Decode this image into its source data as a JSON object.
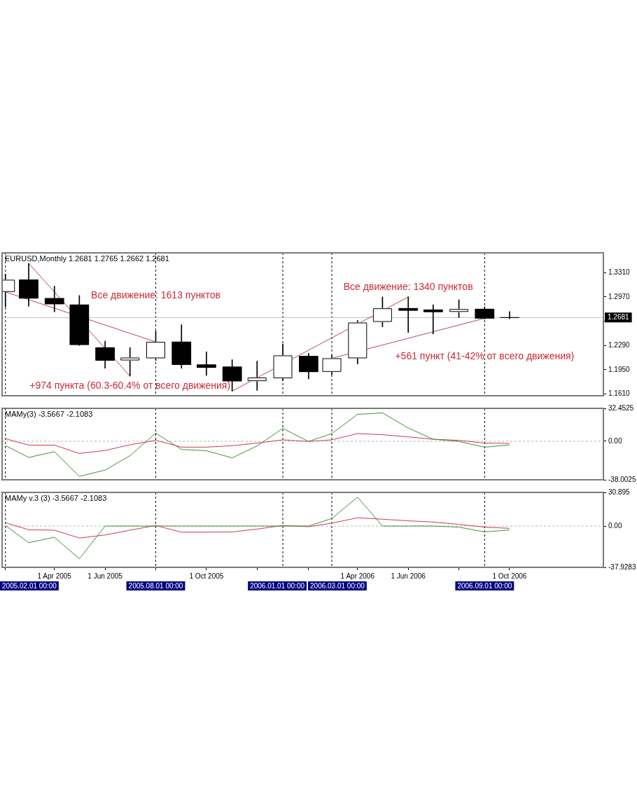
{
  "chart_data": [
    {
      "type": "candlestick",
      "title": "EURUSD,Monthly 1.2681 1.2765 1.2662 1.2681",
      "x": [
        "2005-02",
        "2005-03",
        "2005-04",
        "2005-05",
        "2005-06",
        "2005-07",
        "2005-08",
        "2005-09",
        "2005-10",
        "2005-11",
        "2005-12",
        "2006-01",
        "2006-02",
        "2006-03",
        "2006-04",
        "2006-05",
        "2006-06",
        "2006-07",
        "2006-08",
        "2006-09",
        "2006-10"
      ],
      "ohlc": [
        [
          1.304,
          1.329,
          1.283,
          1.321
        ],
        [
          1.321,
          1.344,
          1.284,
          1.295
        ],
        [
          1.295,
          1.312,
          1.276,
          1.287
        ],
        [
          1.286,
          1.299,
          1.229,
          1.23
        ],
        [
          1.226,
          1.235,
          1.197,
          1.208
        ],
        [
          1.208,
          1.226,
          1.186,
          1.212
        ],
        [
          1.211,
          1.249,
          1.208,
          1.234
        ],
        [
          1.234,
          1.258,
          1.197,
          1.202
        ],
        [
          1.202,
          1.22,
          1.187,
          1.198
        ],
        [
          1.199,
          1.209,
          1.165,
          1.179
        ],
        [
          1.179,
          1.207,
          1.166,
          1.184
        ],
        [
          1.183,
          1.231,
          1.18,
          1.215
        ],
        [
          1.214,
          1.218,
          1.182,
          1.192
        ],
        [
          1.192,
          1.215,
          1.188,
          1.211
        ],
        [
          1.211,
          1.264,
          1.203,
          1.261
        ],
        [
          1.262,
          1.297,
          1.255,
          1.281
        ],
        [
          1.281,
          1.297,
          1.247,
          1.278
        ],
        [
          1.279,
          1.286,
          1.245,
          1.276
        ],
        [
          1.276,
          1.293,
          1.268,
          1.28
        ],
        [
          1.28,
          1.283,
          1.266,
          1.267
        ],
        [
          1.2681,
          1.2765,
          1.2662,
          1.2681
        ]
      ],
      "color": "#000000",
      "colors": [
        "#ffffff",
        "#000000",
        "#000000",
        "#000000",
        "#000000",
        "#ffffff",
        "#ffffff",
        "#000000",
        "#000000",
        "#000000",
        "#ffffff",
        "#ffffff",
        "#000000",
        "#ffffff",
        "#ffffff",
        "#ffffff",
        "#000000",
        "#000000",
        "#ffffff",
        "#000000",
        "#000000"
      ],
      "series": [
        {
          "type": "line",
          "color": "#b5485a",
          "x": [
            "2005-03",
            "2005-07"
          ],
          "values": [
            1.344,
            1.186
          ]
        },
        {
          "type": "line",
          "color": "#b5485a",
          "x": [
            "2005-02",
            "2005-08"
          ],
          "values": [
            1.304,
            1.234
          ]
        },
        {
          "type": "line",
          "color": "#b5485a",
          "x": [
            "2005-11",
            "2006-06"
          ],
          "values": [
            1.165,
            1.297
          ]
        },
        {
          "type": "line",
          "color": "#b5485a",
          "x": [
            "2006-03",
            "2006-09"
          ],
          "values": [
            1.211,
            1.267
          ]
        }
      ],
      "xlim": [
        "2005-01-28",
        "2007-01-22"
      ],
      "ylim": [
        1.1585,
        1.3587
      ],
      "yticks": [
        {
          "value": 1.331,
          "label": "1.3310"
        },
        {
          "value": 1.297,
          "label": "1.2970"
        },
        {
          "value": 1.263,
          "label": null
        },
        {
          "value": 1.229,
          "label": "1.2290"
        },
        {
          "value": 1.195,
          "label": "1.1950"
        },
        {
          "value": 1.161,
          "label": "1.1610"
        }
      ],
      "ref_lines": [
        {
          "axis": "x",
          "value": "2005-02",
          "color": "#000000",
          "line_style": "dashed"
        },
        {
          "axis": "x",
          "value": "2005-08",
          "color": "#000000",
          "line_style": "dashed"
        },
        {
          "axis": "x",
          "value": "2006-01",
          "color": "#000000",
          "line_style": "dashed"
        },
        {
          "axis": "x",
          "value": "2006-03",
          "color": "#000000",
          "line_style": "dashed"
        },
        {
          "axis": "x",
          "value": "2006-09",
          "color": "#000000",
          "line_style": "dashed"
        },
        {
          "axis": "y",
          "value": 1.2681,
          "label": "1.2681",
          "color": "#c0c0c0",
          "line_style": "solid"
        }
      ],
      "annotations": [
        "Все движение: 1613 пунктов",
        "+974 пункта (60.3-60.4% от всего движения)",
        "Все движение: 1340 пунктов",
        "+561 пункт (41-42% от всего движения)"
      ],
      "tick_labels": "y"
    },
    {
      "type": "line",
      "title": "MAMy(3) -3.5667 -2.1083",
      "x": [
        "2005-02",
        "2005-03",
        "2005-04",
        "2005-05",
        "2005-06",
        "2005-07",
        "2005-08",
        "2005-09",
        "2005-10",
        "2005-11",
        "2005-12",
        "2006-01",
        "2006-02",
        "2006-03",
        "2006-04",
        "2006-05",
        "2006-06",
        "2006-07",
        "2006-08",
        "2006-09",
        "2006-10"
      ],
      "series": [
        {
          "color": "#3f8f3f",
          "values": [
            -4.2,
            -16.0,
            -10.2,
            -34.6,
            -28.4,
            -14.2,
            8.0,
            -8.0,
            -9.3,
            -16.4,
            -4.6,
            12.7,
            -0.2,
            7.6,
            26.5,
            28.0,
            13.1,
            2.0,
            -0.2,
            -5.8,
            -3.6
          ]
        },
        {
          "color": "#d03a4c",
          "values": [
            2.5,
            -3.8,
            -3.8,
            -12.0,
            -9.1,
            -3.5,
            0.9,
            -5.8,
            -5.8,
            -4.4,
            -1.8,
            1.4,
            -0.2,
            1.4,
            7.6,
            6.5,
            4.3,
            2.0,
            0.9,
            -1.8,
            -2.1
          ]
        }
      ],
      "xlim": [
        "2005-01-28",
        "2007-01-22"
      ],
      "ylim": [
        -38.0025,
        32.4525
      ],
      "yticks": [
        32.4525,
        {
          "value": 0,
          "label": "0.00"
        },
        -38.0025
      ],
      "ref_lines": [
        {
          "axis": "y",
          "value": 0,
          "color": "#b4b4b4",
          "line_style": "dashed"
        },
        {
          "axis": "x",
          "value": "2005-02",
          "color": "#000000",
          "line_style": "dashed"
        },
        {
          "axis": "x",
          "value": "2005-08",
          "color": "#000000",
          "line_style": "dashed"
        },
        {
          "axis": "x",
          "value": "2006-01",
          "color": "#000000",
          "line_style": "dashed"
        },
        {
          "axis": "x",
          "value": "2006-03",
          "color": "#000000",
          "line_style": "dashed"
        },
        {
          "axis": "x",
          "value": "2006-09",
          "color": "#000000",
          "line_style": "dashed"
        }
      ],
      "tick_labels": "y"
    },
    {
      "type": "line",
      "title": "MAMy v.3 (3) -3.5667 -2.1083",
      "x": [
        "2005-02",
        "2005-03",
        "2005-04",
        "2005-05",
        "2005-06",
        "2005-07",
        "2005-08",
        "2005-09",
        "2005-10",
        "2005-11",
        "2005-12",
        "2006-01",
        "2006-02",
        "2006-03",
        "2006-04",
        "2006-05",
        "2006-06",
        "2006-07",
        "2006-08",
        "2006-09",
        "2006-10"
      ],
      "series": [
        {
          "color": "#3f8f3f",
          "values": [
            0.5,
            -15.3,
            -10.3,
            -30.0,
            0,
            0,
            0,
            0,
            0,
            0,
            0,
            0,
            0,
            7.0,
            26.5,
            0,
            0,
            0,
            -1.0,
            -5.4,
            -3.6
          ]
        },
        {
          "color": "#d03a4c",
          "values": [
            3.1,
            -3.4,
            -3.8,
            -11.0,
            -8.2,
            -3.8,
            0.5,
            -5.6,
            -5.6,
            -5.4,
            -2.8,
            0.5,
            -0.6,
            2.6,
            7.6,
            6.3,
            4.8,
            3.7,
            1.5,
            -1.0,
            -2.1
          ]
        }
      ],
      "xlim": [
        "2005-01-28",
        "2007-01-22"
      ],
      "ylim": [
        -37.9283,
        30.895
      ],
      "xticks": [
        {
          "value": "2005-02",
          "label": null
        },
        {
          "value": "2005-04",
          "label": "1 Apr 2005"
        },
        {
          "value": "2005-06",
          "label": "1 Jun 2005"
        },
        {
          "value": "2005-08",
          "label": null
        },
        {
          "value": "2005-10",
          "label": "1 Oct 2005"
        },
        {
          "value": "2005-12",
          "label": null
        },
        {
          "value": "2006-02",
          "label": null
        },
        {
          "value": "2006-04",
          "label": "1 Apr 2006"
        },
        {
          "value": "2006-06",
          "label": "1 Jun 2006"
        },
        {
          "value": "2006-08",
          "label": null
        },
        {
          "value": "2006-10",
          "label": "1 Oct 2006"
        }
      ],
      "yticks": [
        30.895,
        {
          "value": 0,
          "label": "0.00"
        },
        -37.9283
      ],
      "ref_lines": [
        {
          "axis": "y",
          "value": 0,
          "color": "#b4b4b4",
          "line_style": "dashed"
        },
        {
          "axis": "x",
          "value": "2005-02",
          "label": "2005.02.01 00:00",
          "color": "#000000",
          "line_style": "dashed"
        },
        {
          "axis": "x",
          "value": "2005-08",
          "label": "2005.08.01 00:00",
          "color": "#000000",
          "line_style": "dashed"
        },
        {
          "axis": "x",
          "value": "2006-01",
          "label": "2006.01.01 00:00",
          "color": "#000000",
          "line_style": "dashed"
        },
        {
          "axis": "x",
          "value": "2006-03",
          "label": "2006.03.01 00:00",
          "color": "#000000",
          "line_style": "dashed"
        },
        {
          "axis": "x",
          "value": "2006-09",
          "label": "2006.09.01 00:00",
          "color": "#000000",
          "line_style": "dashed"
        }
      ]
    }
  ]
}
